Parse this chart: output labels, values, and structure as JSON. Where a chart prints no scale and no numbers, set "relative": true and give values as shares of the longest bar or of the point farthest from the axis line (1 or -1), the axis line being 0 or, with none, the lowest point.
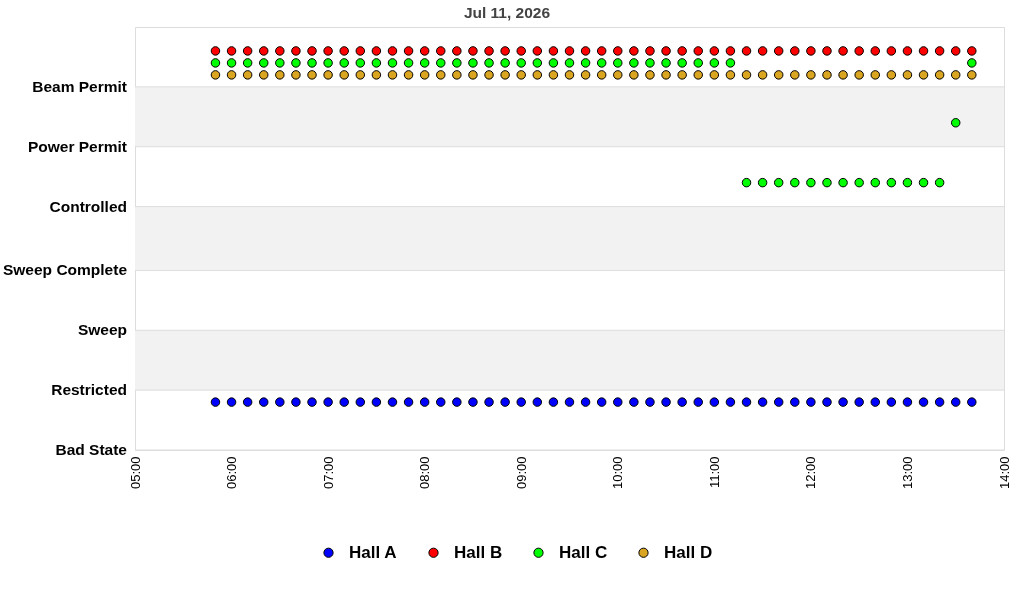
{
  "chart_data": {
    "type": "scatter",
    "title": "Jul 11, 2026",
    "relative": true,
    "x": [
      "2026-07-11T05:50",
      "2026-07-11T06:00",
      "2026-07-11T06:10",
      "2026-07-11T06:20",
      "2026-07-11T06:30",
      "2026-07-11T06:40",
      "2026-07-11T06:50",
      "2026-07-11T07:00",
      "2026-07-11T07:10",
      "2026-07-11T07:20",
      "2026-07-11T07:30",
      "2026-07-11T07:40",
      "2026-07-11T07:50",
      "2026-07-11T08:00",
      "2026-07-11T08:10",
      "2026-07-11T08:20",
      "2026-07-11T08:30",
      "2026-07-11T08:40",
      "2026-07-11T08:50",
      "2026-07-11T09:00",
      "2026-07-11T09:10",
      "2026-07-11T09:20",
      "2026-07-11T09:30",
      "2026-07-11T09:40",
      "2026-07-11T09:50",
      "2026-07-11T10:00",
      "2026-07-11T10:10",
      "2026-07-11T10:20",
      "2026-07-11T10:30",
      "2026-07-11T10:40",
      "2026-07-11T10:50",
      "2026-07-11T11:00",
      "2026-07-11T11:10",
      "2026-07-11T11:20",
      "2026-07-11T11:30",
      "2026-07-11T11:40",
      "2026-07-11T11:50",
      "2026-07-11T12:00",
      "2026-07-11T12:10",
      "2026-07-11T12:20",
      "2026-07-11T12:30",
      "2026-07-11T12:40",
      "2026-07-11T12:50",
      "2026-07-11T13:00",
      "2026-07-11T13:10",
      "2026-07-11T13:20",
      "2026-07-11T13:30",
      "2026-07-11T13:40"
    ],
    "series": [
      {
        "name": "Hall A",
        "color": "#0000ff",
        "values": [
          0.12,
          0.12,
          0.12,
          0.12,
          0.12,
          0.12,
          0.12,
          0.12,
          0.12,
          0.12,
          0.12,
          0.12,
          0.12,
          0.12,
          0.12,
          0.12,
          0.12,
          0.12,
          0.12,
          0.12,
          0.12,
          0.12,
          0.12,
          0.12,
          0.12,
          0.12,
          0.12,
          0.12,
          0.12,
          0.12,
          0.12,
          0.12,
          0.12,
          0.12,
          0.12,
          0.12,
          0.12,
          0.12,
          0.12,
          0.12,
          0.12,
          0.12,
          0.12,
          0.12,
          0.12,
          0.12,
          0.12,
          0.12
        ]
      },
      {
        "name": "Hall B",
        "color": "#ff0000",
        "values": [
          1,
          1,
          1,
          1,
          1,
          1,
          1,
          1,
          1,
          1,
          1,
          1,
          1,
          1,
          1,
          1,
          1,
          1,
          1,
          1,
          1,
          1,
          1,
          1,
          1,
          1,
          1,
          1,
          1,
          1,
          1,
          1,
          1,
          1,
          1,
          1,
          1,
          1,
          1,
          1,
          1,
          1,
          1,
          1,
          1,
          1,
          1,
          1
        ]
      },
      {
        "name": "Hall C",
        "color": "#00ff00",
        "values": [
          0.97,
          0.97,
          0.97,
          0.97,
          0.97,
          0.97,
          0.97,
          0.97,
          0.97,
          0.97,
          0.97,
          0.97,
          0.97,
          0.97,
          0.97,
          0.97,
          0.97,
          0.97,
          0.97,
          0.97,
          0.97,
          0.97,
          0.97,
          0.97,
          0.97,
          0.97,
          0.97,
          0.97,
          0.97,
          0.97,
          0.97,
          0.97,
          0.97,
          0.67,
          0.67,
          0.67,
          0.67,
          0.67,
          0.67,
          0.67,
          0.67,
          0.67,
          0.67,
          0.67,
          0.67,
          0.67,
          0.82,
          0.97
        ]
      },
      {
        "name": "Hall D",
        "color": "#daa520",
        "values": [
          0.94,
          0.94,
          0.94,
          0.94,
          0.94,
          0.94,
          0.94,
          0.94,
          0.94,
          0.94,
          0.94,
          0.94,
          0.94,
          0.94,
          0.94,
          0.94,
          0.94,
          0.94,
          0.94,
          0.94,
          0.94,
          0.94,
          0.94,
          0.94,
          0.94,
          0.94,
          0.94,
          0.94,
          0.94,
          0.94,
          0.94,
          0.94,
          0.94,
          0.94,
          0.94,
          0.94,
          0.94,
          0.94,
          0.94,
          0.94,
          0.94,
          0.94,
          0.94,
          0.94,
          0.94,
          0.94,
          0.94,
          0.94
        ]
      }
    ],
    "xlim": [
      "2026-07-11T05:00",
      "2026-07-11T14:00"
    ],
    "xticks": [
      {
        "value": "2026-07-11T05:00",
        "label": "05:00"
      },
      {
        "value": "2026-07-11T06:00",
        "label": "06:00"
      },
      {
        "value": "2026-07-11T07:00",
        "label": "07:00"
      },
      {
        "value": "2026-07-11T08:00",
        "label": "08:00"
      },
      {
        "value": "2026-07-11T09:00",
        "label": "09:00"
      },
      {
        "value": "2026-07-11T10:00",
        "label": "10:00"
      },
      {
        "value": "2026-07-11T11:00",
        "label": "11:00"
      },
      {
        "value": "2026-07-11T12:00",
        "label": "12:00"
      },
      {
        "value": "2026-07-11T13:00",
        "label": "13:00"
      },
      {
        "value": "2026-07-11T14:00",
        "label": "14:00"
      }
    ],
    "ref_lines": [
      {
        "axis": "y",
        "value": 0,
        "label": "Bad State",
        "color": "#dddddd"
      },
      {
        "axis": "y",
        "value": 0.15,
        "label": "Restricted",
        "color": "#dddddd"
      },
      {
        "axis": "y",
        "value": 0.3,
        "label": "Sweep",
        "color": "#dddddd"
      },
      {
        "axis": "y",
        "value": 0.45,
        "label": "Sweep Complete",
        "color": "#dddddd"
      },
      {
        "axis": "y",
        "value": 0.61,
        "label": "Controlled",
        "color": "#dddddd"
      },
      {
        "axis": "y",
        "value": 0.76,
        "label": "Power Permit",
        "color": "#dddddd"
      },
      {
        "axis": "y",
        "value": 0.91,
        "label": "Beam Permit",
        "color": "#dddddd"
      }
    ],
    "bands": [
      {
        "axis": "y",
        "from": 0.15,
        "to": 0.3,
        "color": "#f2f2f2"
      },
      {
        "axis": "y",
        "from": 0.45,
        "to": 0.61,
        "color": "#f2f2f2"
      },
      {
        "axis": "y",
        "from": 0.76,
        "to": 0.91,
        "color": "#f2f2f2"
      }
    ],
    "legend": "bottom",
    "marker": "circle"
  }
}
